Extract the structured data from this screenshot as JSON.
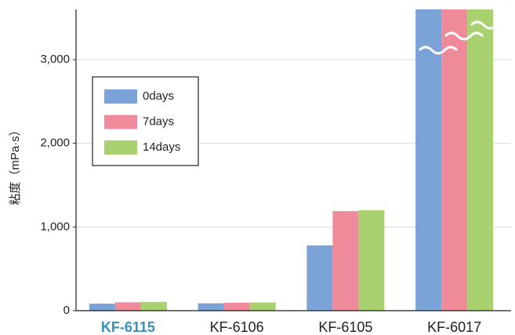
{
  "chart_data": {
    "type": "bar",
    "y_label": "粘度（mPa·s）",
    "categories": [
      "KF-6115",
      "KF-6106",
      "KF-6105",
      "KF-6017"
    ],
    "category_colors": [
      "#3a8fb7",
      "#222222",
      "#222222",
      "#222222"
    ],
    "series": [
      {
        "name": "0days",
        "color": "#7ba3d8",
        "values": [
          84,
          88,
          780,
          3600
        ]
      },
      {
        "name": "7days",
        "color": "#ef8a9b",
        "values": [
          100,
          95,
          1190,
          3600
        ]
      },
      {
        "name": "14days",
        "color": "#a9d16f",
        "values": [
          105,
          98,
          1200,
          3600
        ]
      }
    ],
    "ylim": [
      0,
      3600
    ],
    "yticks": [
      0,
      {
        "value": 1000,
        "label": "1,000"
      },
      {
        "value": 2000,
        "label": "2,000"
      },
      {
        "value": 3000,
        "label": "3,000"
      }
    ],
    "grid": true,
    "legend": "upper left"
  }
}
